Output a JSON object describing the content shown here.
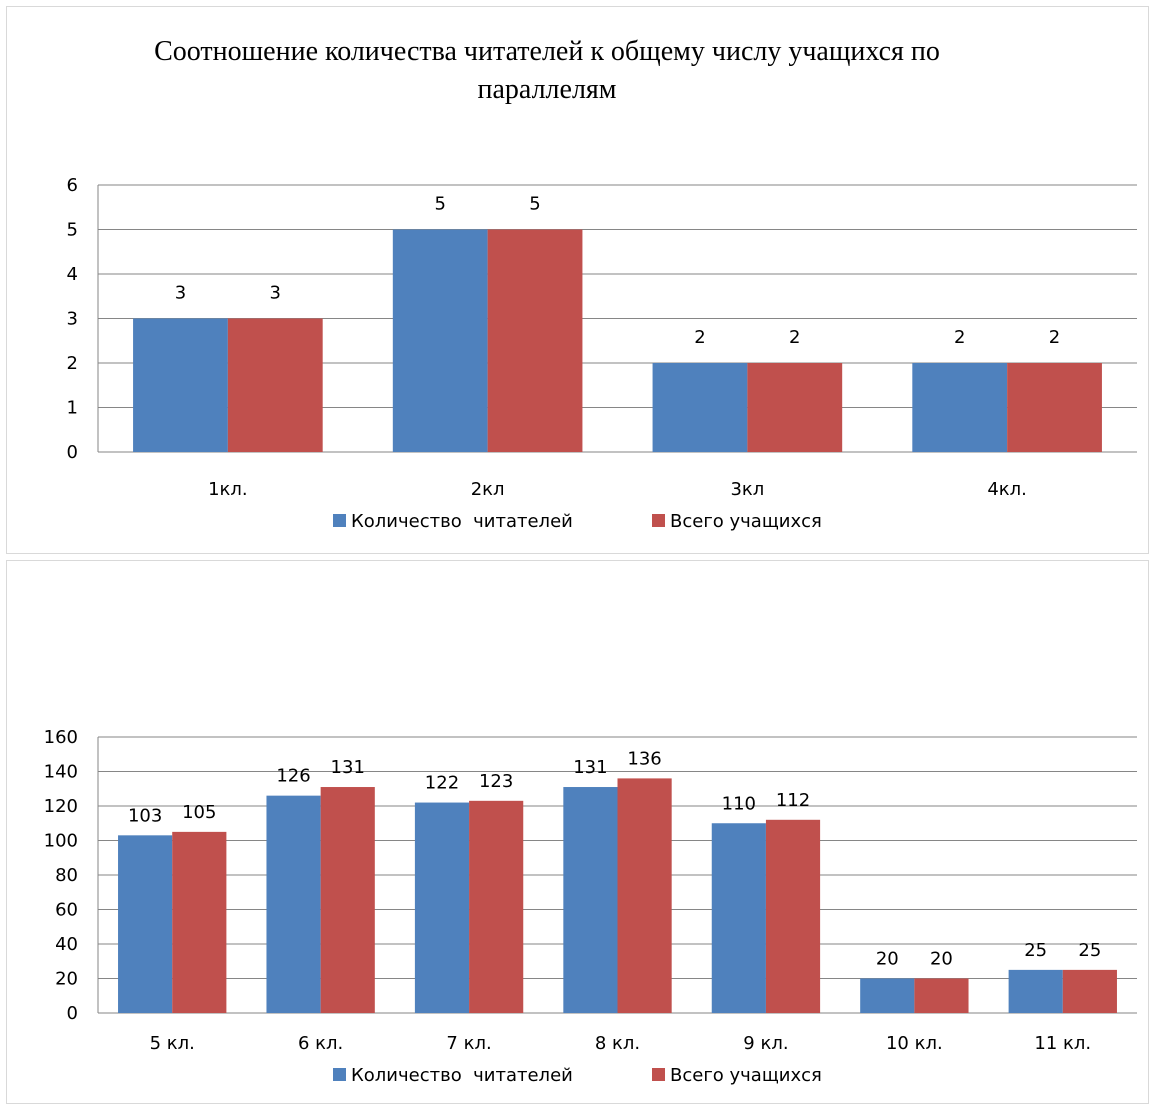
{
  "chart_data": [
    {
      "type": "bar",
      "title": "Соотношение количества читателей к общему числу учащихся по параллелям",
      "categories": [
        "1кл.",
        "2кл",
        "3кл",
        "4кл."
      ],
      "series": [
        {
          "name": "Количество  читателей",
          "values": [
            3,
            5,
            2,
            2
          ],
          "color": "#4f81bd"
        },
        {
          "name": "Всего учащихся",
          "values": [
            3,
            5,
            2,
            2
          ],
          "color": "#c0504d"
        }
      ],
      "ylim": [
        0,
        6
      ],
      "yticks": [
        "0",
        "1",
        "2",
        "3",
        "4",
        "5",
        "6"
      ],
      "grid": true,
      "legend": "bottom"
    },
    {
      "type": "bar",
      "title": "",
      "categories": [
        "5 кл.",
        "6 кл.",
        "7 кл.",
        "8 кл.",
        "9 кл.",
        "10 кл.",
        "11 кл."
      ],
      "series": [
        {
          "name": "Количество  читателей",
          "values": [
            103,
            126,
            122,
            131,
            110,
            20,
            25
          ],
          "color": "#4f81bd"
        },
        {
          "name": "Всего учащихся",
          "values": [
            105,
            131,
            123,
            136,
            112,
            20,
            25
          ],
          "color": "#c0504d"
        }
      ],
      "ylim": [
        0,
        160
      ],
      "yticks": [
        "0",
        "20",
        "40",
        "60",
        "80",
        "100",
        "120",
        "140",
        "160"
      ],
      "grid": true,
      "legend": "bottom"
    }
  ]
}
